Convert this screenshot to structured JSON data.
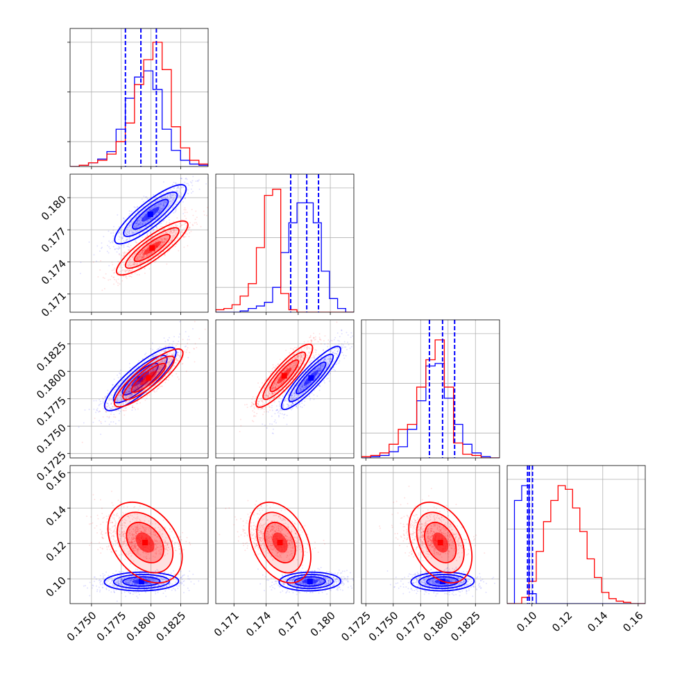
{
  "chart_data": {
    "type": "corner",
    "grid": true,
    "series": [
      {
        "name": "",
        "color": "#0000ff"
      },
      {
        "name": "",
        "color": "#ff0000"
      }
    ],
    "axes": [
      {
        "xlim": [
          0.1732,
          0.1848
        ],
        "ylim": [
          0,
          1
        ],
        "ticks": [
          "0.1750",
          "0.1775",
          "0.1800",
          "0.1825"
        ],
        "tick_values": [
          0.175,
          0.1775,
          0.18,
          0.1825
        ]
      },
      {
        "xlim": [
          0.1693,
          0.1822
        ],
        "ylim": [
          0.1693,
          0.1822
        ],
        "ticks": [
          "0.171",
          "0.174",
          "0.177",
          "0.180"
        ],
        "tick_values": [
          0.171,
          0.174,
          0.177,
          0.18
        ]
      },
      {
        "xlim": [
          0.1721,
          0.1847
        ],
        "ylim": [
          0.1721,
          0.1847
        ],
        "ticks": [
          "0.1725",
          "0.1750",
          "0.1775",
          "0.1800",
          "0.1825"
        ],
        "tick_values": [
          0.1725,
          0.175,
          0.1775,
          0.18,
          0.1825
        ]
      },
      {
        "xlim": [
          0.086,
          0.164
        ],
        "ylim": [
          0.086,
          0.164
        ],
        "ticks": [
          "0.10",
          "0.12",
          "0.14",
          "0.16"
        ],
        "tick_values": [
          0.1,
          0.12,
          0.14,
          0.16
        ]
      }
    ],
    "quantile_lines": [
      [
        0.17785,
        0.17915,
        0.18045
      ],
      [
        0.1763,
        0.1778,
        0.1789
      ],
      [
        0.1783,
        0.1795,
        0.1806
      ],
      [
        0.0975,
        0.0985,
        0.1003
      ]
    ],
    "hist_1d": [
      {
        "blue": [
          0.0,
          0.01,
          0.03,
          0.06,
          0.12,
          0.3,
          0.55,
          0.72,
          0.77,
          0.62,
          0.3,
          0.13,
          0.05,
          0.02,
          0.01
        ],
        "red": [
          0.0,
          0.01,
          0.03,
          0.05,
          0.1,
          0.2,
          0.35,
          0.66,
          0.86,
          1.0,
          0.78,
          0.32,
          0.15,
          0.05,
          0.02
        ]
      },
      {
        "blue": [
          0.0,
          0.0,
          0.0,
          0.01,
          0.03,
          0.05,
          0.08,
          0.2,
          0.48,
          0.72,
          0.88,
          0.88,
          0.72,
          0.33,
          0.11,
          0.03,
          0.0
        ],
        "red": [
          0.02,
          0.03,
          0.06,
          0.13,
          0.23,
          0.52,
          0.94,
          0.99,
          0.15,
          0.02,
          0.0,
          0.0,
          0.0,
          0.0,
          0.0,
          0.0,
          0.0
        ]
      },
      {
        "blue": [
          0.0,
          0.01,
          0.02,
          0.05,
          0.09,
          0.23,
          0.46,
          0.74,
          0.76,
          0.48,
          0.27,
          0.11,
          0.04,
          0.01,
          0.0
        ],
        "red": [
          0.01,
          0.02,
          0.04,
          0.11,
          0.23,
          0.27,
          0.57,
          0.79,
          0.95,
          0.57,
          0.12,
          0.03,
          0.02,
          0.0,
          0.0
        ]
      },
      {
        "blue": [
          0.0,
          0.83,
          0.95,
          0.08,
          0.0,
          0.0,
          0.0,
          0.0,
          0.0,
          0.0,
          0.0,
          0.0,
          0.0,
          0.0,
          0.0,
          0.0,
          0.0,
          0.0,
          0.0
        ],
        "red": [
          0.0,
          0.0,
          0.05,
          0.18,
          0.42,
          0.66,
          0.83,
          0.95,
          0.92,
          0.77,
          0.58,
          0.36,
          0.21,
          0.09,
          0.04,
          0.02,
          0.01,
          0.0,
          0.0
        ]
      }
    ],
    "blobs": [
      {
        "row": 1,
        "col": 0,
        "color": "#0000ff",
        "cx": 0.17995,
        "cy": 0.17845,
        "sx": 0.00125,
        "sy": 0.00115,
        "rho": 0.86
      },
      {
        "row": 1,
        "col": 0,
        "color": "#ff0000",
        "cx": 0.1801,
        "cy": 0.1753,
        "sx": 0.00125,
        "sy": 0.00105,
        "rho": 0.86
      },
      {
        "row": 2,
        "col": 0,
        "color": "#0000ff",
        "cx": 0.1791,
        "cy": 0.1793,
        "sx": 0.00125,
        "sy": 0.0012,
        "rho": 0.85
      },
      {
        "row": 2,
        "col": 0,
        "color": "#ff0000",
        "cx": 0.1798,
        "cy": 0.1794,
        "sx": 0.0012,
        "sy": 0.0011,
        "rho": 0.86
      },
      {
        "row": 2,
        "col": 1,
        "color": "#0000ff",
        "cx": 0.1782,
        "cy": 0.1794,
        "sx": 0.00115,
        "sy": 0.0012,
        "rho": 0.9
      },
      {
        "row": 2,
        "col": 1,
        "color": "#ff0000",
        "cx": 0.1757,
        "cy": 0.1796,
        "sx": 0.0011,
        "sy": 0.0012,
        "rho": 0.88
      },
      {
        "row": 3,
        "col": 0,
        "color": "#0000ff",
        "cx": 0.1792,
        "cy": 0.0985,
        "sx": 0.0013,
        "sy": 0.0022,
        "rho": 0.05
      },
      {
        "row": 3,
        "col": 0,
        "color": "#ff0000",
        "cx": 0.1795,
        "cy": 0.1205,
        "sx": 0.0013,
        "sy": 0.0095,
        "rho": -0.35
      },
      {
        "row": 3,
        "col": 1,
        "color": "#0000ff",
        "cx": 0.1781,
        "cy": 0.0985,
        "sx": 0.0012,
        "sy": 0.0022,
        "rho": 0.05
      },
      {
        "row": 3,
        "col": 1,
        "color": "#ff0000",
        "cx": 0.1753,
        "cy": 0.1205,
        "sx": 0.0012,
        "sy": 0.0095,
        "rho": -0.35
      },
      {
        "row": 3,
        "col": 2,
        "color": "#0000ff",
        "cx": 0.1795,
        "cy": 0.0985,
        "sx": 0.0012,
        "sy": 0.0022,
        "rho": 0.05
      },
      {
        "row": 3,
        "col": 2,
        "color": "#ff0000",
        "cx": 0.1793,
        "cy": 0.1205,
        "sx": 0.0012,
        "sy": 0.0095,
        "rho": -0.35
      }
    ]
  }
}
